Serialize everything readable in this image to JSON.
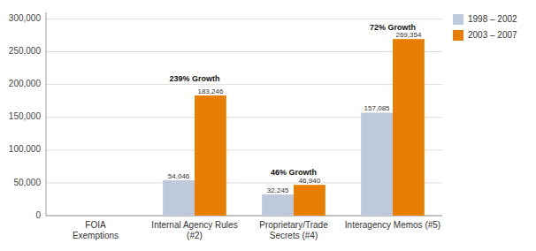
{
  "chart_data": {
    "type": "bar",
    "categories": [
      "FOIA\nExemptions",
      "Internal Agency Rules\n(#2)",
      "Proprietary/Trade\nSecrets (#4)",
      "Interagency Memos (#5)"
    ],
    "series": [
      {
        "name": "1998 – 2002",
        "color": "#bfc9dc",
        "values": [
          null,
          54046,
          32245,
          157085
        ],
        "value_labels": [
          null,
          "54,046",
          "32,245",
          "157,085"
        ]
      },
      {
        "name": "2003 – 2007",
        "color": "#e87e04",
        "values": [
          null,
          183246,
          46940,
          269354
        ],
        "value_labels": [
          null,
          "183,246",
          "46,940",
          "269,354"
        ]
      }
    ],
    "ylim": [
      0,
      310000
    ],
    "yticks": [
      0,
      {
        "value": 50000,
        "label": "50,000"
      },
      {
        "value": 100000,
        "label": "100,000"
      },
      {
        "value": 150000,
        "label": "150,000"
      },
      {
        "value": 200000,
        "label": "200,000"
      },
      {
        "value": 250000,
        "label": "250,000"
      },
      {
        "value": 300000,
        "label": "300,000"
      }
    ],
    "grid": true,
    "legend": "right",
    "data_labels": true,
    "annotations": [
      {
        "text": "239% Growth",
        "x": "Internal Agency Rules\n(#2)",
        "y": 205000
      },
      {
        "text": "46% Growth",
        "x": "Proprietary/Trade\nSecrets (#4)",
        "y": 62000
      },
      {
        "text": "72% Growth",
        "x": "Interagency Memos (#5)",
        "y": 283000
      }
    ]
  }
}
